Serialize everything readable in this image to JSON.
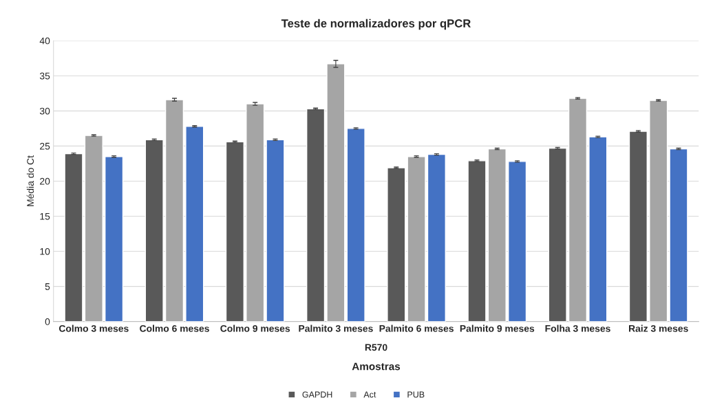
{
  "chart_data": {
    "type": "bar",
    "title": "Teste de normalizadores por qPCR",
    "xlabel": "Amostras",
    "ylabel": "Média do Ct",
    "categories": [
      "Colmo 3 meses",
      "Colmo 6 meses",
      "Colmo 9 meses",
      "Palmito 3 meses",
      "Palmito 6 meses",
      "Palmito 9 meses",
      "Folha 3 meses",
      "Raiz 3 meses"
    ],
    "series": [
      {
        "name": "GAPDH",
        "color": "#595959",
        "values": [
          23.9,
          25.9,
          25.6,
          30.3,
          21.9,
          22.9,
          24.7,
          27.1
        ],
        "errors": [
          0.1,
          0.1,
          0.1,
          0.1,
          0.1,
          0.1,
          0.1,
          0.1
        ]
      },
      {
        "name": "Act",
        "color": "#a5a5a5",
        "values": [
          26.5,
          31.6,
          31.0,
          36.7,
          23.5,
          24.6,
          31.8,
          31.5
        ],
        "errors": [
          0.1,
          0.2,
          0.2,
          0.5,
          0.1,
          0.1,
          0.1,
          0.1
        ]
      },
      {
        "name": "PUB",
        "color": "#4472c4",
        "values": [
          23.5,
          27.8,
          25.9,
          27.5,
          23.8,
          22.8,
          26.3,
          24.6
        ],
        "errors": [
          0.1,
          0.1,
          0.1,
          0.1,
          0.1,
          0.1,
          0.1,
          0.1
        ]
      }
    ],
    "ylim": [
      0,
      40
    ],
    "yticks": [
      0,
      5,
      10,
      15,
      20,
      25,
      30,
      35,
      40
    ],
    "grid": "y",
    "legend": "bottom",
    "annotations": [
      "R570"
    ]
  }
}
